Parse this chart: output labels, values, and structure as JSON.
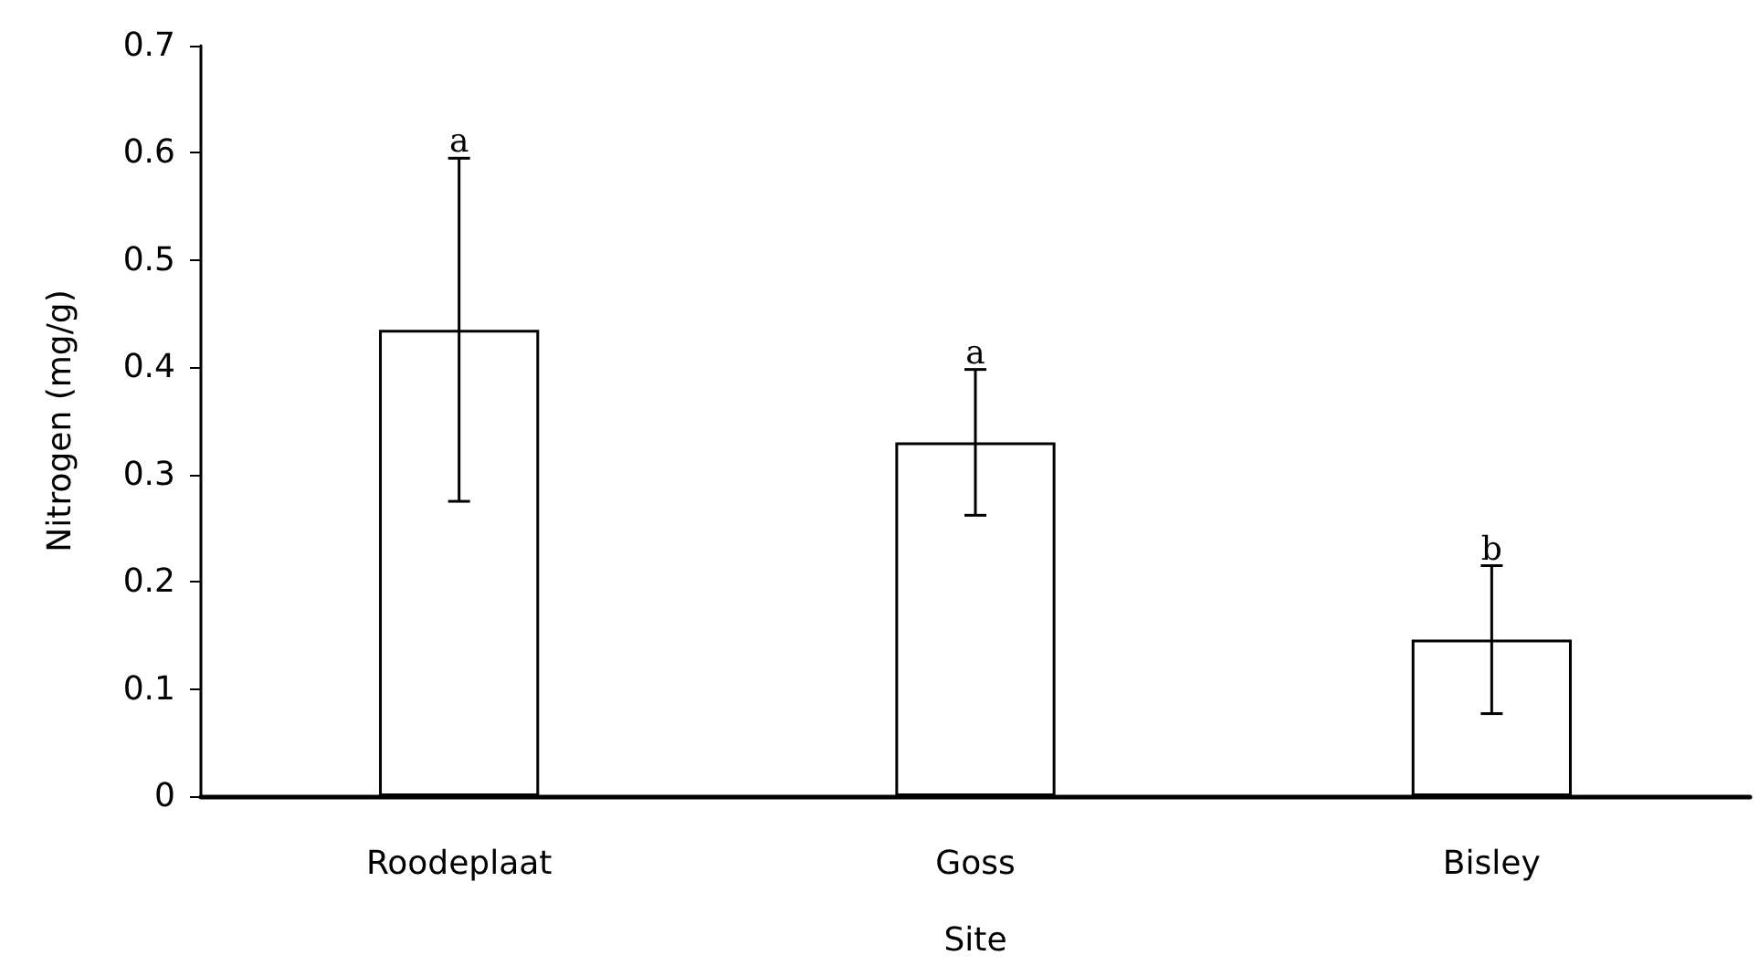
{
  "chart_data": {
    "type": "bar",
    "xlabel": "Site",
    "ylabel": "Nitrogen (mg/g)",
    "categories": [
      "Roodeplaat",
      "Goss",
      "Bisley"
    ],
    "values": [
      0.435,
      0.33,
      0.146
    ],
    "errors": [
      0.16,
      0.068,
      0.069
    ],
    "color": "#ffffff",
    "ylim": [
      0,
      0.7
    ],
    "yticks": [
      0,
      0.1,
      0.2,
      0.3,
      0.4,
      0.5,
      0.6,
      0.7
    ],
    "grid": false,
    "annotations": [
      {
        "text": "a",
        "x": "Roodeplaat",
        "y": 0.595
      },
      {
        "text": "a",
        "x": "Goss",
        "y": 0.398
      },
      {
        "text": "b",
        "x": "Bisley",
        "y": 0.215
      }
    ]
  }
}
